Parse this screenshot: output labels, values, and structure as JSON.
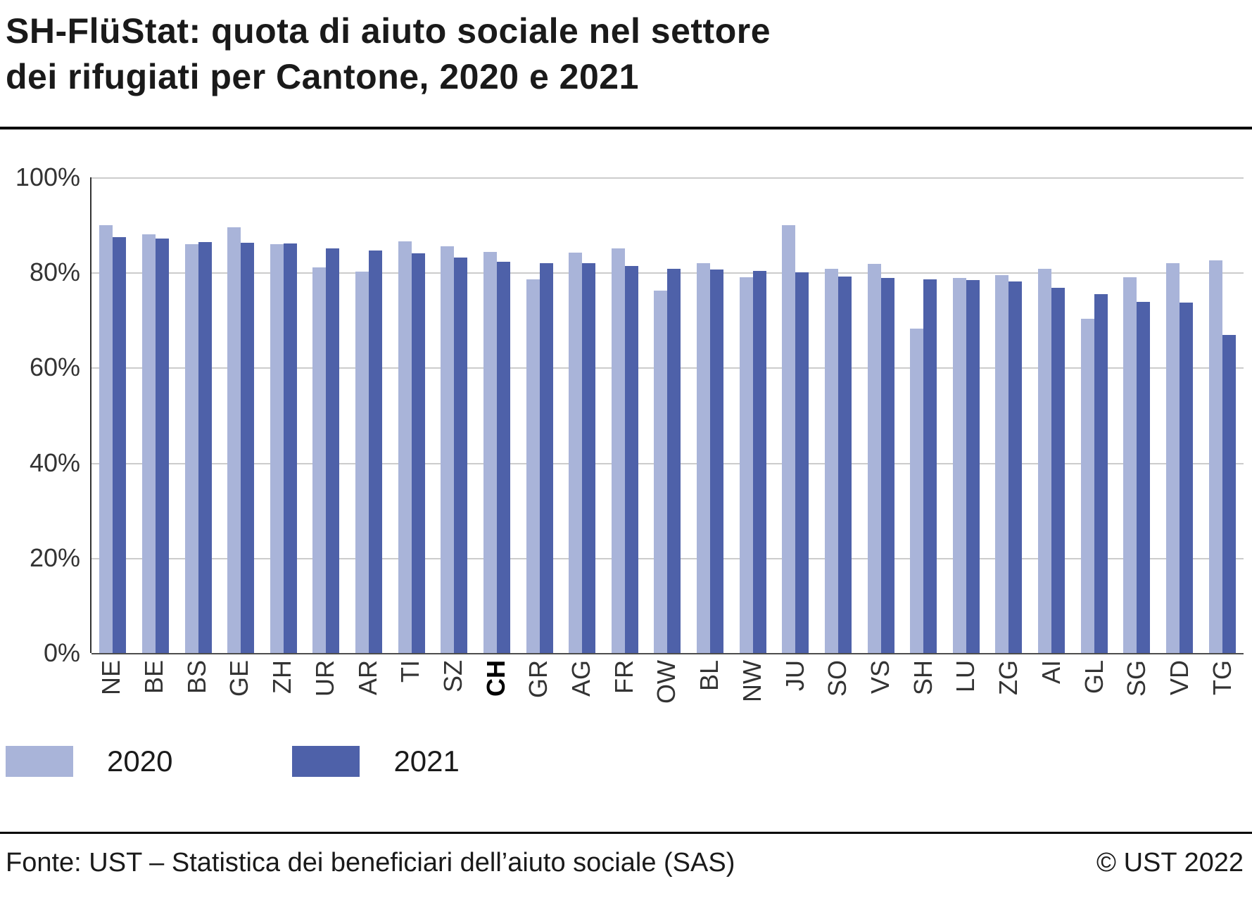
{
  "title": {
    "line1": "SH-FlüStat: quota di aiuto sociale nel settore",
    "line2": "dei rifugiati per Cantone, 2020 e 2021"
  },
  "chart_data": {
    "type": "bar",
    "categories": [
      "NE",
      "BE",
      "BS",
      "GE",
      "ZH",
      "UR",
      "AR",
      "TI",
      "SZ",
      "CH",
      "GR",
      "AG",
      "FR",
      "OW",
      "BL",
      "NW",
      "JU",
      "SO",
      "VS",
      "SH",
      "LU",
      "ZG",
      "AI",
      "GL",
      "SG",
      "VD",
      "TG"
    ],
    "bold_category": "CH",
    "series": [
      {
        "name": "2020",
        "color": "#a9b4d9",
        "values": [
          90.0,
          88.0,
          86.0,
          89.5,
          86.0,
          81.0,
          80.2,
          86.5,
          85.5,
          84.3,
          78.5,
          84.2,
          85.0,
          76.2,
          82.0,
          79.0,
          90.0,
          80.8,
          81.8,
          68.2,
          78.9,
          79.5,
          80.8,
          70.2,
          79.0,
          81.9,
          82.5
        ]
      },
      {
        "name": "2021",
        "color": "#4e61a9",
        "values": [
          87.4,
          87.2,
          86.4,
          86.3,
          86.1,
          85.0,
          84.6,
          84.0,
          83.1,
          82.2,
          82.0,
          81.9,
          81.4,
          80.8,
          80.6,
          80.3,
          80.1,
          79.1,
          78.9,
          78.6,
          78.4,
          78.1,
          76.8,
          75.5,
          73.8,
          73.7,
          66.8
        ]
      }
    ],
    "yticks": [
      0,
      20,
      40,
      60,
      80,
      100
    ],
    "ytick_labels": [
      "0%",
      "20%",
      "40%",
      "60%",
      "80%",
      "100%"
    ],
    "ylim": [
      0,
      100
    ],
    "grid": "horizontal",
    "legend_position": "bottom",
    "title": "SH-FlüStat: quota di aiuto sociale nel settore dei rifugiati per Cantone, 2020 e 2021",
    "xlabel": "",
    "ylabel": ""
  },
  "legend": [
    {
      "label": "2020"
    },
    {
      "label": "2021"
    }
  ],
  "footer": {
    "source": "Fonte: UST – Statistica dei beneficiari dell’aiuto sociale (SAS)",
    "copyright": "© UST 2022"
  }
}
